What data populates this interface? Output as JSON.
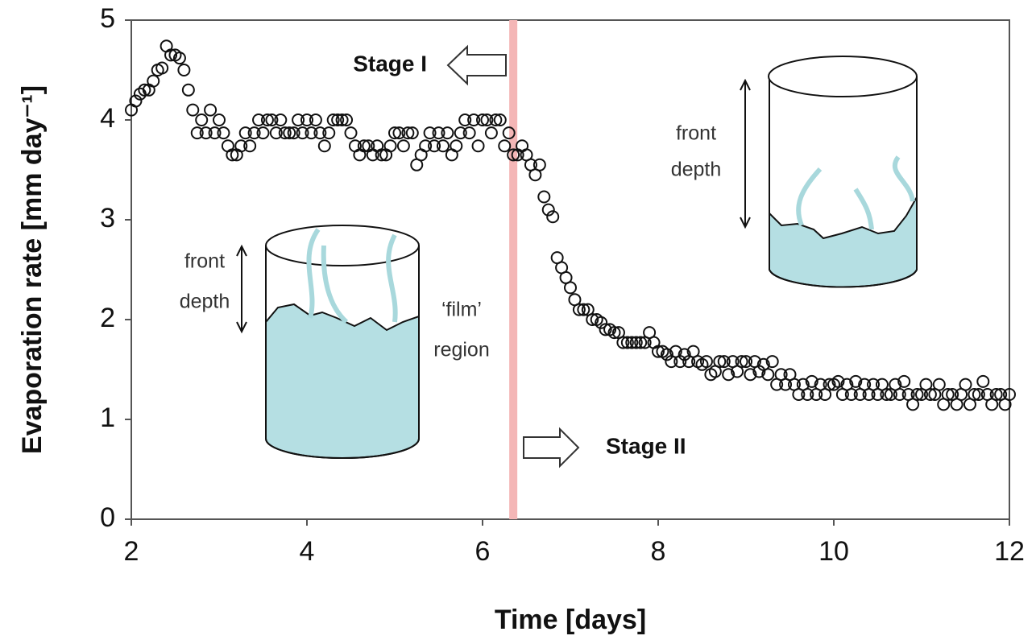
{
  "chart_data": {
    "type": "scatter",
    "x_label": "Time [days]",
    "y_label": "Evaporation rate [mm day⁻¹]",
    "xlim": [
      2,
      12
    ],
    "xticks": [
      2,
      4,
      6,
      8,
      10,
      12
    ],
    "ylim": [
      0,
      5
    ],
    "yticks": [
      0,
      1,
      2,
      3,
      4,
      5
    ],
    "stage_boundary": 6.35,
    "stage_boundary_color": "#f4b6b6",
    "marker_color": "#111111",
    "annotations": [
      "Stage I",
      "Stage II",
      "front",
      "depth",
      "front",
      "depth",
      "‘film’",
      "region"
    ],
    "x": [
      2,
      2.05,
      2.1,
      2.15,
      2.2,
      2.25,
      2.3,
      2.35,
      2.4,
      2.45,
      2.5,
      2.55,
      2.6,
      2.65,
      2.7,
      2.75,
      2.8,
      2.85,
      2.9,
      2.95,
      3,
      3.05,
      3.1,
      3.15,
      3.2,
      3.25,
      3.3,
      3.35,
      3.4,
      3.45,
      3.5,
      3.55,
      3.6,
      3.65,
      3.7,
      3.75,
      3.8,
      3.85,
      3.9,
      3.95,
      4,
      4.05,
      4.1,
      4.15,
      4.2,
      4.25,
      4.3,
      4.35,
      4.4,
      4.45,
      4.5,
      4.55,
      4.6,
      4.65,
      4.7,
      4.75,
      4.8,
      4.85,
      4.9,
      4.95,
      5,
      5.05,
      5.1,
      5.15,
      5.2,
      5.25,
      5.3,
      5.35,
      5.4,
      5.45,
      5.5,
      5.55,
      5.6,
      5.65,
      5.7,
      5.75,
      5.8,
      5.85,
      5.9,
      5.95,
      6,
      6.05,
      6.1,
      6.15,
      6.2,
      6.25,
      6.3,
      6.35,
      6.4,
      6.45,
      6.5,
      6.55,
      6.6,
      6.65,
      6.7,
      6.75,
      6.8,
      6.85,
      6.9,
      6.95,
      7,
      7.05,
      7.1,
      7.15,
      7.2,
      7.25,
      7.3,
      7.35,
      7.4,
      7.45,
      7.5,
      7.55,
      7.6,
      7.65,
      7.7,
      7.75,
      7.8,
      7.85,
      7.9,
      7.95,
      8,
      8.05,
      8.1,
      8.15,
      8.2,
      8.25,
      8.3,
      8.35,
      8.4,
      8.45,
      8.5,
      8.55,
      8.6,
      8.65,
      8.7,
      8.75,
      8.8,
      8.85,
      8.9,
      8.95,
      9,
      9.05,
      9.1,
      9.15,
      9.2,
      9.25,
      9.3,
      9.35,
      9.4,
      9.45,
      9.5,
      9.55,
      9.6,
      9.65,
      9.7,
      9.75,
      9.8,
      9.85,
      9.9,
      9.95,
      10,
      10.05,
      10.1,
      10.15,
      10.2,
      10.25,
      10.3,
      10.35,
      10.4,
      10.45,
      10.5,
      10.55,
      10.6,
      10.65,
      10.7,
      10.75,
      10.8,
      10.85,
      10.9,
      10.95,
      11,
      11.05,
      11.1,
      11.15,
      11.2,
      11.25,
      11.3,
      11.35,
      11.4,
      11.45,
      11.5,
      11.55,
      11.6,
      11.65,
      11.7,
      11.75,
      11.8,
      11.85,
      11.9,
      11.95,
      12
    ],
    "y": [
      4.1,
      4.19,
      4.26,
      4.3,
      4.3,
      4.39,
      4.5,
      4.52,
      4.74,
      4.65,
      4.65,
      4.62,
      4.5,
      4.3,
      4.1,
      3.87,
      4.0,
      3.87,
      4.1,
      3.87,
      4.0,
      3.87,
      3.74,
      3.65,
      3.65,
      3.74,
      3.87,
      3.74,
      3.87,
      4.0,
      3.87,
      4.0,
      4.0,
      3.87,
      4.0,
      3.87,
      3.87,
      3.87,
      4.0,
      3.87,
      4.0,
      3.87,
      4.0,
      3.87,
      3.74,
      3.87,
      4.0,
      4.0,
      4.0,
      4.0,
      3.87,
      3.74,
      3.65,
      3.74,
      3.74,
      3.65,
      3.74,
      3.65,
      3.65,
      3.74,
      3.87,
      3.87,
      3.74,
      3.87,
      3.87,
      3.55,
      3.65,
      3.74,
      3.87,
      3.74,
      3.87,
      3.74,
      3.87,
      3.65,
      3.74,
      3.87,
      4.0,
      3.87,
      4.0,
      3.74,
      4.0,
      4.0,
      3.87,
      4.0,
      4.0,
      3.74,
      3.87,
      3.65,
      3.65,
      3.74,
      3.65,
      3.55,
      3.45,
      3.55,
      3.23,
      3.1,
      3.03,
      2.62,
      2.52,
      2.42,
      2.32,
      2.2,
      2.1,
      2.1,
      2.1,
      2.0,
      2.0,
      1.97,
      1.9,
      1.9,
      1.87,
      1.87,
      1.77,
      1.77,
      1.77,
      1.77,
      1.77,
      1.77,
      1.87,
      1.77,
      1.68,
      1.68,
      1.65,
      1.58,
      1.68,
      1.58,
      1.65,
      1.58,
      1.68,
      1.58,
      1.55,
      1.58,
      1.45,
      1.48,
      1.58,
      1.58,
      1.45,
      1.58,
      1.48,
      1.58,
      1.58,
      1.45,
      1.58,
      1.48,
      1.55,
      1.45,
      1.58,
      1.35,
      1.45,
      1.35,
      1.45,
      1.35,
      1.25,
      1.35,
      1.25,
      1.38,
      1.25,
      1.35,
      1.25,
      1.35,
      1.35,
      1.38,
      1.25,
      1.35,
      1.25,
      1.38,
      1.25,
      1.35,
      1.25,
      1.35,
      1.25,
      1.35,
      1.25,
      1.25,
      1.35,
      1.25,
      1.38,
      1.25,
      1.15,
      1.25,
      1.25,
      1.35,
      1.25,
      1.25,
      1.35,
      1.15,
      1.25,
      1.25,
      1.15,
      1.25,
      1.35,
      1.15,
      1.25,
      1.25,
      1.38,
      1.25,
      1.15,
      1.25,
      1.25,
      1.15,
      1.25
    ]
  }
}
